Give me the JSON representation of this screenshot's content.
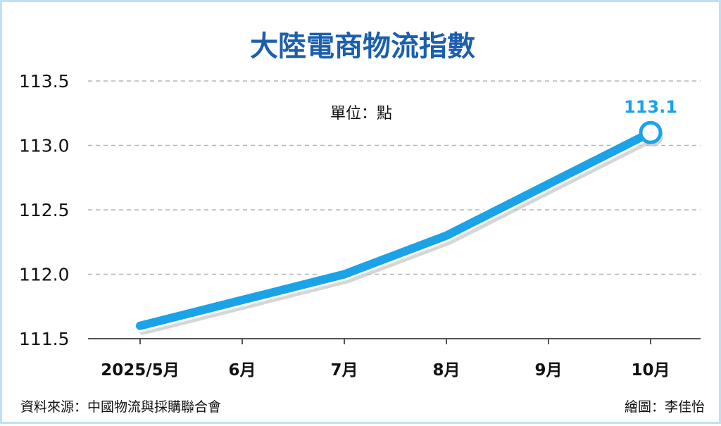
{
  "colors": {
    "title": "#1b5fae",
    "line": "#1aa3e8",
    "grid": "#b5b5b5",
    "shadow": "#c4c4c4",
    "frame": "#bfe0f5"
  },
  "chart_data": {
    "type": "line",
    "title": "大陸電商物流指數",
    "unit_label": "單位：點",
    "categories": [
      "2025/5月",
      "6月",
      "7月",
      "8月",
      "9月",
      "10月"
    ],
    "values": [
      111.6,
      111.8,
      112.0,
      112.3,
      112.7,
      113.1
    ],
    "ylim": [
      111.5,
      113.5
    ],
    "yticks": [
      "113.5",
      "113.0",
      "112.5",
      "112.0",
      "111.5"
    ],
    "grid": true,
    "annotations": [
      {
        "index": 5,
        "text": "113.1"
      }
    ],
    "source": "資料來源：中國物流與採購聯合會",
    "credit": "繪圖：李佳怡"
  }
}
